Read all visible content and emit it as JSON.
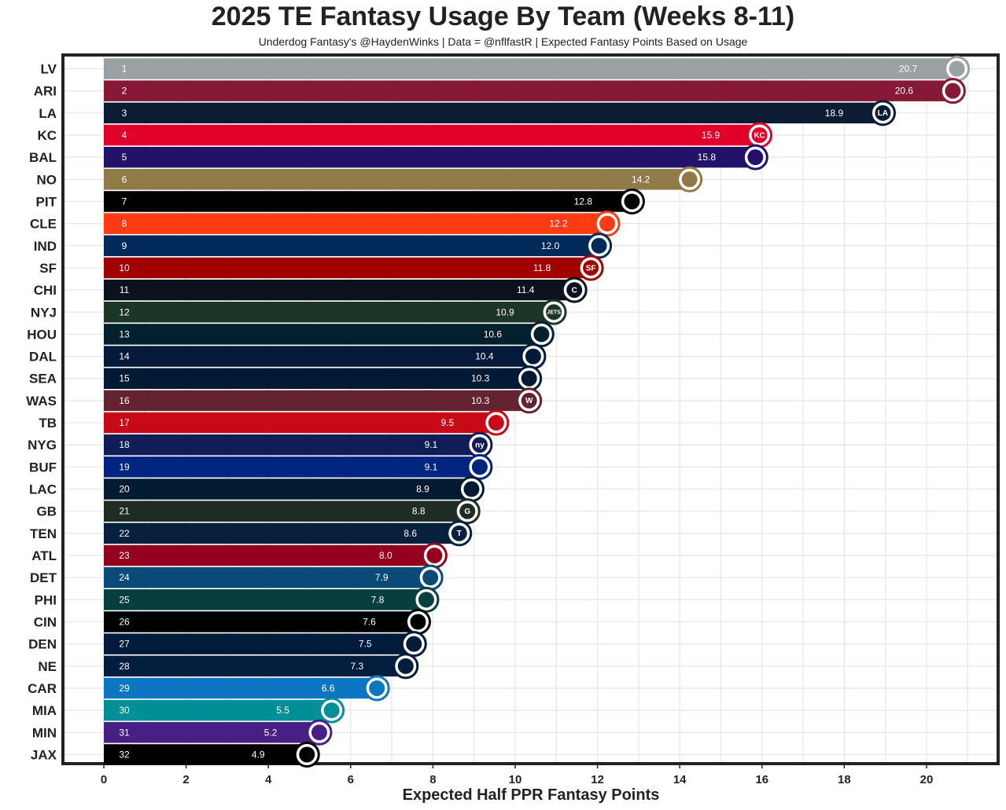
{
  "chart_data": {
    "type": "bar",
    "orientation": "horizontal",
    "title": "2025 TE Fantasy Usage By Team (Weeks 8-11)",
    "subtitle": "Underdog Fantasy's @HaydenWinks | Data = @nflfastR | Expected Fantasy Points Based on Usage",
    "xlabel": "Expected Half PPR Fantasy Points",
    "ylabel": "",
    "xlim": [
      -1,
      21.5
    ],
    "xticks": [
      0,
      2,
      4,
      6,
      8,
      10,
      12,
      14,
      16,
      18,
      20
    ],
    "grid": true,
    "legend": "none",
    "categories": [
      "LV",
      "ARI",
      "LA",
      "KC",
      "BAL",
      "NO",
      "PIT",
      "CLE",
      "IND",
      "SF",
      "CHI",
      "NYJ",
      "HOU",
      "DAL",
      "SEA",
      "WAS",
      "TB",
      "NYG",
      "BUF",
      "LAC",
      "GB",
      "TEN",
      "ATL",
      "DET",
      "PHI",
      "CIN",
      "DEN",
      "NE",
      "CAR",
      "MIA",
      "MIN",
      "JAX"
    ],
    "ranks": [
      "1",
      "2",
      "3",
      "4",
      "5",
      "6",
      "7",
      "8",
      "9",
      "10",
      "11",
      "12",
      "13",
      "14",
      "15",
      "16",
      "17",
      "18",
      "19",
      "20",
      "21",
      "22",
      "23",
      "24",
      "25",
      "26",
      "27",
      "28",
      "29",
      "30",
      "31",
      "32"
    ],
    "values": [
      20.7,
      20.6,
      18.9,
      15.9,
      15.8,
      14.2,
      12.8,
      12.2,
      12.0,
      11.8,
      11.4,
      10.9,
      10.6,
      10.4,
      10.3,
      10.3,
      9.5,
      9.1,
      9.1,
      8.9,
      8.8,
      8.6,
      8.0,
      7.9,
      7.8,
      7.6,
      7.5,
      7.3,
      6.6,
      5.5,
      5.2,
      4.9
    ],
    "value_labels": [
      "20.7",
      "20.6",
      "18.9",
      "15.9",
      "15.8",
      "14.2",
      "12.8",
      "12.2",
      "12.0",
      "11.8",
      "11.4",
      "10.9",
      "10.6",
      "10.4",
      "10.3",
      "10.3",
      "9.5",
      "9.1",
      "9.1",
      "8.9",
      "8.8",
      "8.6",
      "8.0",
      "7.9",
      "7.8",
      "7.6",
      "7.5",
      "7.3",
      "6.6",
      "5.5",
      "5.2",
      "4.9"
    ],
    "colors": [
      "#A5ACAF",
      "#97233F",
      "#003594",
      "#E31837",
      "#241773",
      "#D3BC8D",
      "#101820",
      "#FF3C00",
      "#002C5F",
      "#AA0000",
      "#0B162A",
      "#125740",
      "#03202F",
      "#041E42",
      "#002244",
      "#5A1414",
      "#D50A0A",
      "#0B2265",
      "#00338D",
      "#0080C6",
      "#203731",
      "#0C2340",
      "#A71930",
      "#0076B6",
      "#004C54",
      "#000000",
      "#FB4F14",
      "#002244",
      "#0085CA",
      "#008E97",
      "#4F2683",
      "#101820"
    ],
    "display_colors": [
      "#9aa0a3",
      "#861a36",
      "#0b1c34",
      "#e0002a",
      "#23116a",
      "#8f7a48",
      "#000000",
      "#ff3b13",
      "#012a5a",
      "#a00000",
      "#0d111e",
      "#1d3527",
      "#03202f",
      "#05193a",
      "#001a33",
      "#632331",
      "#c80a18",
      "#121c56",
      "#00247f",
      "#031b31",
      "#1e2c23",
      "#06203e",
      "#94001e",
      "#0a4a79",
      "#073e3e",
      "#000000",
      "#031b3a",
      "#021d3e",
      "#0d76c3",
      "#008e97",
      "#4a1f85",
      "#000000"
    ],
    "logos": [
      "raiders-logo",
      "cardinals-logo",
      "rams-logo",
      "chiefs-logo",
      "ravens-logo",
      "saints-logo",
      "steelers-logo",
      "browns-logo",
      "colts-logo",
      "49ers-logo",
      "bears-logo",
      "jets-logo",
      "texans-logo",
      "cowboys-logo",
      "seahawks-logo",
      "commanders-logo",
      "buccaneers-logo",
      "giants-logo",
      "bills-logo",
      "chargers-logo",
      "packers-logo",
      "titans-logo",
      "falcons-logo",
      "lions-logo",
      "eagles-logo",
      "bengals-logo",
      "broncos-logo",
      "patriots-logo",
      "panthers-logo",
      "dolphins-logo",
      "vikings-logo",
      "jaguars-logo"
    ],
    "logo_lettering": {
      "LA": "LA",
      "KC": "KC",
      "SF": "SF",
      "NYJ": "JETS",
      "WAS": "W",
      "NYG": "ny",
      "CHI": "C",
      "GB": "G",
      "TEN": "T"
    }
  }
}
